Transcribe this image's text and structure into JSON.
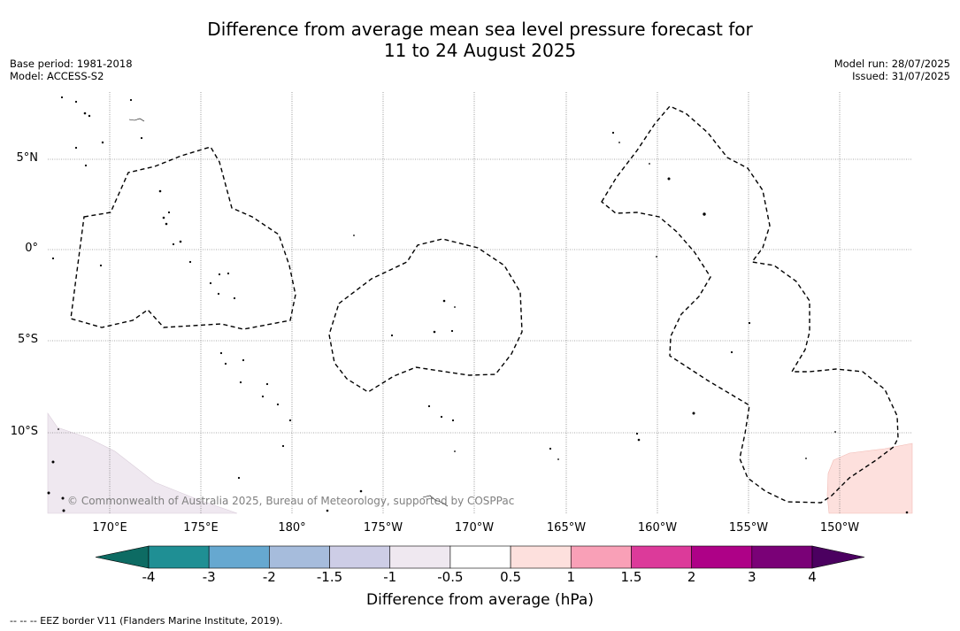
{
  "title": {
    "line1": "Difference from average mean sea level pressure forecast for",
    "line2": "11 to 24 August 2025"
  },
  "meta_left": {
    "base_period": "Base period: 1981-2018",
    "model": "Model: ACCESS-S2"
  },
  "meta_right": {
    "model_run": "Model run: 28/07/2025",
    "issued": "Issued: 31/07/2025"
  },
  "map": {
    "lat_labels": [
      "5°N",
      "0°",
      "5°S",
      "10°S"
    ],
    "lon_labels": [
      "170°E",
      "175°E",
      "180°",
      "175°W",
      "170°W",
      "165°W",
      "160°W",
      "155°W",
      "150°W"
    ],
    "copyright": "© Commonwealth of Australia 2025, Bureau of Meteorology, supported by COSPPac",
    "shading": [
      {
        "region": "south-west",
        "category": "-1 to -0.5",
        "color": "#efe8f0"
      },
      {
        "region": "south-east",
        "category": "0.5 to 1",
        "color": "#fde0dd"
      }
    ]
  },
  "colorbar": {
    "ticks": [
      "-4",
      "-3",
      "-2",
      "-1.5",
      "-1",
      "-0.5",
      "0.5",
      "1",
      "1.5",
      "2",
      "3",
      "4"
    ],
    "colors": [
      "#1f8f94",
      "#66a8d0",
      "#a6bcdc",
      "#cdcde6",
      "#efe8f0",
      "#ffffff",
      "#fde0dd",
      "#f9a0b7",
      "#dc3a9a",
      "#ae0187",
      "#7a0177"
    ],
    "under_color": "#0d6b63",
    "over_color": "#4b0060",
    "title": "Difference from average (hPa)"
  },
  "footer": "--  --  -- EEZ border V11 (Flanders Marine Institute, 2019)."
}
